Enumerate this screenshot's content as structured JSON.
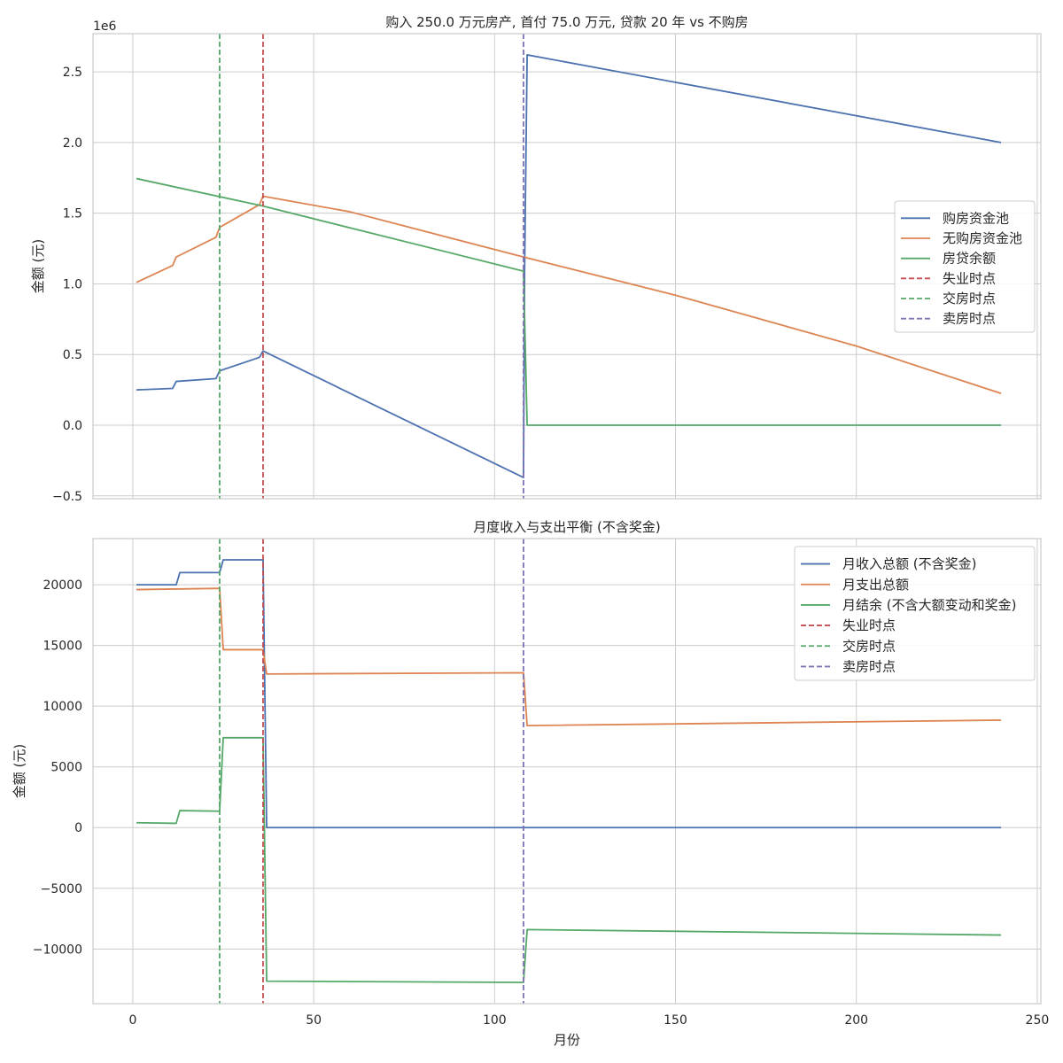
{
  "colors": {
    "blue": "#4c72b0",
    "orange": "#dd8452",
    "green": "#55a868",
    "red": "#c44e52",
    "purple": "#8172b3",
    "grid": "#cccccc"
  },
  "chart_data": [
    {
      "type": "line",
      "title": "购入 250.0 万元房产, 首付 75.0 万元, 贷款 20 年 vs 不购房",
      "xlabel": "",
      "ylabel": "金额 (元)",
      "offset_label": "1e6",
      "xlim": [
        -11,
        251
      ],
      "ylim": [
        -520000,
        2770000
      ],
      "xticks": [
        0,
        50,
        100,
        150,
        200,
        250
      ],
      "xtick_labels": [
        "",
        "",
        "",
        "",
        "",
        ""
      ],
      "yticks": [
        -500000,
        0,
        500000,
        1000000,
        1500000,
        2000000,
        2500000
      ],
      "ytick_labels": [
        "−0.5",
        "0.0",
        "0.5",
        "1.0",
        "1.5",
        "2.0",
        "2.5"
      ],
      "grid": true,
      "legend_position": "center-right",
      "series": [
        {
          "name": "购房资金池",
          "color": "#4c72b0",
          "x": [
            1,
            11,
            12,
            23,
            24,
            35,
            36,
            108,
            108.3,
            109,
            240
          ],
          "y": [
            250000,
            260000,
            310000,
            330000,
            385000,
            480000,
            525000,
            -370000,
            1100000,
            2620000,
            2000000
          ]
        },
        {
          "name": "无购房资金池",
          "color": "#dd8452",
          "x": [
            1,
            11,
            12,
            23,
            24,
            35,
            36,
            60,
            108,
            150,
            200,
            240
          ],
          "y": [
            1010000,
            1130000,
            1190000,
            1330000,
            1400000,
            1560000,
            1620000,
            1510000,
            1190000,
            920000,
            560000,
            225000
          ]
        },
        {
          "name": "房贷余额",
          "color": "#55a868",
          "x": [
            1,
            36,
            108,
            109,
            240
          ],
          "y": [
            1745000,
            1550000,
            1090000,
            0,
            0
          ]
        }
      ],
      "vlines": [
        {
          "name": "失业时点",
          "x": 36,
          "color": "#c44e52"
        },
        {
          "name": "交房时点",
          "x": 24,
          "color": "#55a868"
        },
        {
          "name": "卖房时点",
          "x": 108,
          "color": "#8172b3"
        }
      ]
    },
    {
      "type": "line",
      "title": "月度收入与支出平衡 (不含奖金)",
      "xlabel": "月份",
      "ylabel": "金额 (元)",
      "xlim": [
        -11,
        251
      ],
      "ylim": [
        -14500,
        23800
      ],
      "xticks": [
        0,
        50,
        100,
        150,
        200,
        250
      ],
      "xtick_labels": [
        "0",
        "50",
        "100",
        "150",
        "200",
        "250"
      ],
      "yticks": [
        -10000,
        -5000,
        0,
        5000,
        10000,
        15000,
        20000
      ],
      "ytick_labels": [
        "−10000",
        "−5000",
        "0",
        "5000",
        "10000",
        "15000",
        "20000"
      ],
      "grid": true,
      "legend_position": "upper-right",
      "series": [
        {
          "name": "月收入总额 (不含奖金)",
          "color": "#4c72b0",
          "x": [
            1,
            12,
            13,
            24,
            25,
            36,
            37,
            240
          ],
          "y": [
            20000,
            20000,
            21000,
            21000,
            22050,
            22050,
            0,
            0
          ]
        },
        {
          "name": "月支出总额",
          "color": "#dd8452",
          "x": [
            1,
            24,
            25,
            36,
            37,
            108,
            109,
            240
          ],
          "y": [
            19600,
            19700,
            14650,
            14650,
            12650,
            12750,
            8400,
            8850
          ]
        },
        {
          "name": "月结余 (不含大额变动和奖金)",
          "color": "#55a868",
          "x": [
            1,
            12,
            13,
            24,
            25,
            36,
            37,
            108,
            109,
            240
          ],
          "y": [
            400,
            350,
            1400,
            1350,
            7400,
            7400,
            -12650,
            -12750,
            -8400,
            -8850
          ]
        }
      ],
      "vlines": [
        {
          "name": "失业时点",
          "x": 36,
          "color": "#c44e52"
        },
        {
          "name": "交房时点",
          "x": 24,
          "color": "#55a868"
        },
        {
          "name": "卖房时点",
          "x": 108,
          "color": "#8172b3"
        }
      ]
    }
  ]
}
